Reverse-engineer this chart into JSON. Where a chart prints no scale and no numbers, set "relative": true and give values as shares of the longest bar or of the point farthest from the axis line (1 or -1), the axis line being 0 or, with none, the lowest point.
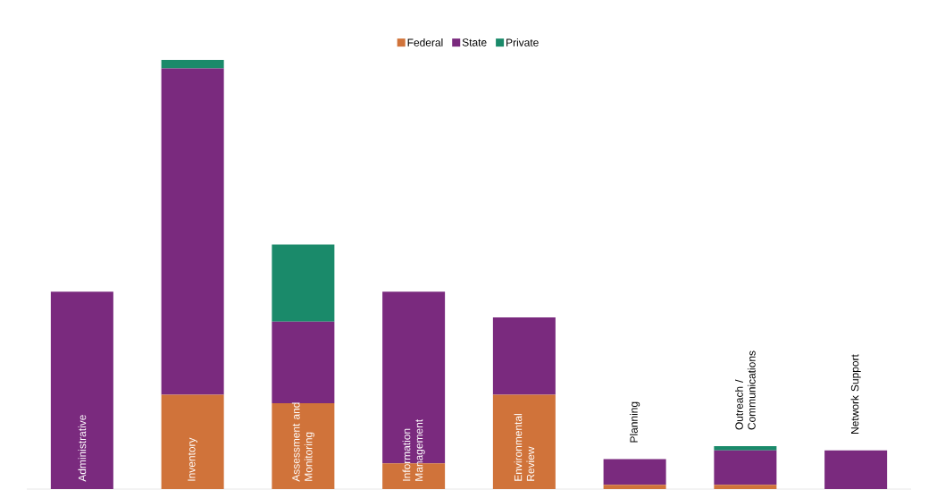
{
  "chart_data": {
    "type": "bar",
    "stacked": true,
    "relative": true,
    "legend": "top",
    "categories": [
      "Administrative",
      "Inventory",
      "Assessment and Monitoring",
      "Information Management",
      "Environmental Review",
      "Planning",
      "Outreach / Communications",
      "Network Support"
    ],
    "series": [
      {
        "name": "Federal",
        "color": "#d0733a",
        "values": [
          0,
          0.22,
          0.2,
          0.06,
          0.22,
          0.01,
          0.01,
          0
        ]
      },
      {
        "name": "State",
        "color": "#7a2a7e",
        "values": [
          0.46,
          0.76,
          0.19,
          0.4,
          0.18,
          0.06,
          0.08,
          0.09
        ]
      },
      {
        "name": "Private",
        "color": "#1a8a6a",
        "values": [
          0,
          0.02,
          0.18,
          0,
          0,
          0,
          0.01,
          0
        ]
      }
    ]
  }
}
